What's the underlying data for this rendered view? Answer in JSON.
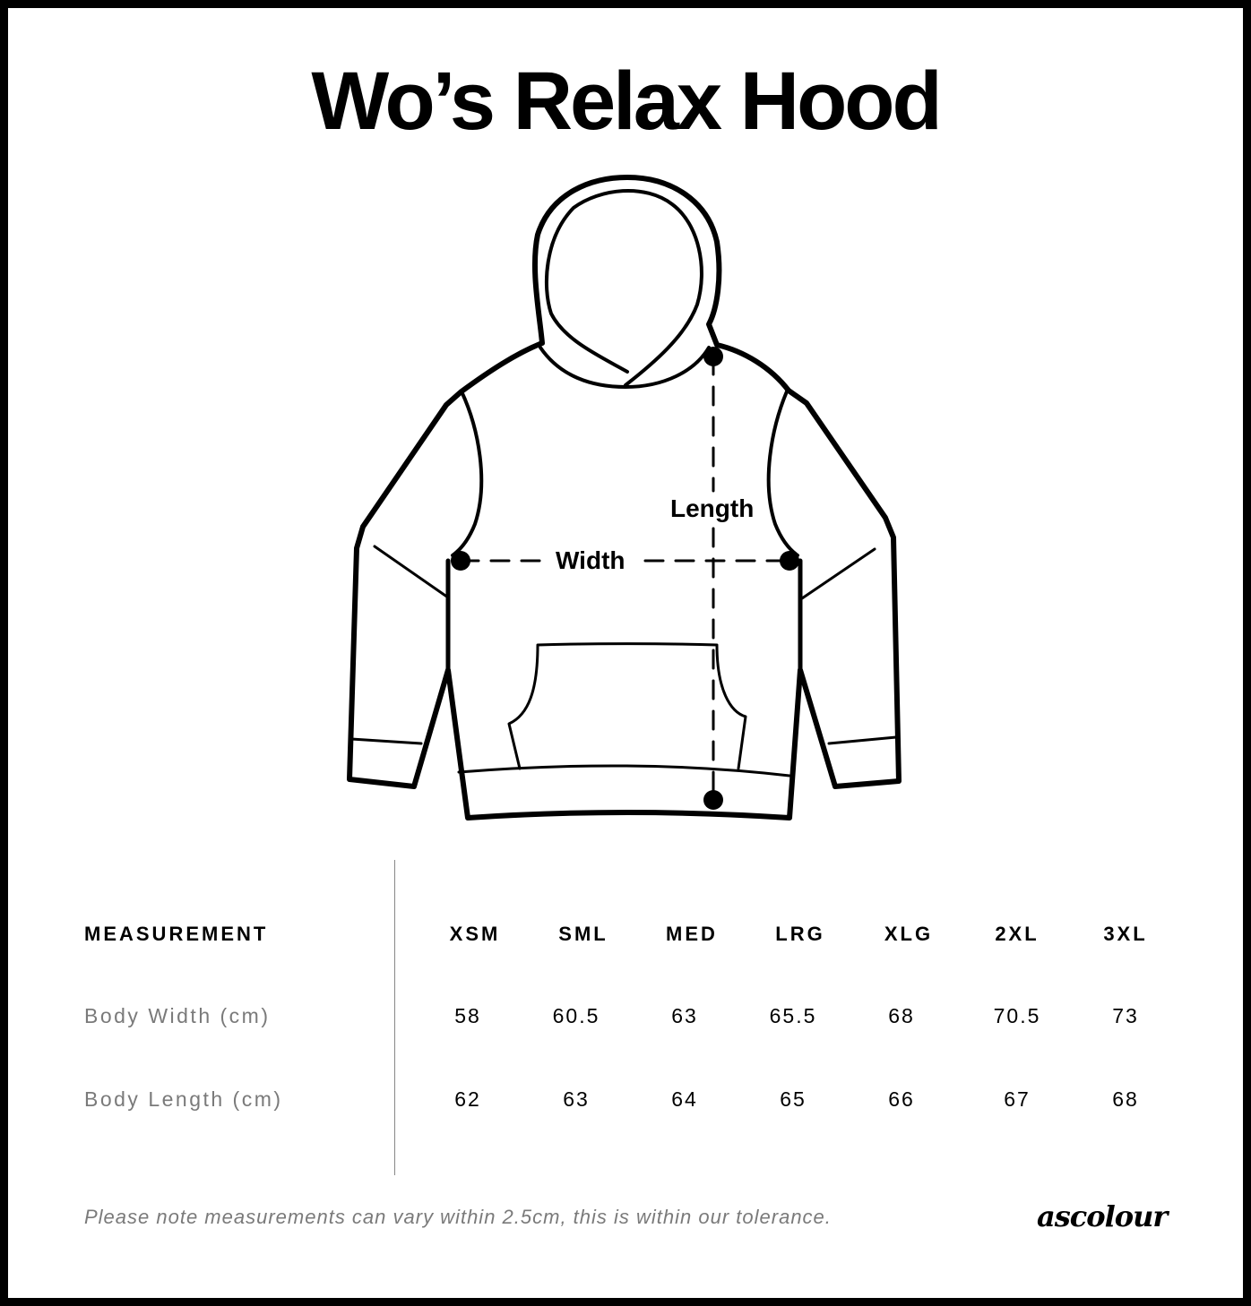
{
  "title": "Wo’s Relax Hood",
  "diagram": {
    "width_label": "Width",
    "length_label": "Length"
  },
  "table": {
    "header": "MEASUREMENT",
    "sizes": [
      "XSM",
      "SML",
      "MED",
      "LRG",
      "XLG",
      "2XL",
      "3XL"
    ],
    "rows": [
      {
        "label": "Body Width (cm)",
        "values": [
          "58",
          "60.5",
          "63",
          "65.5",
          "68",
          "70.5",
          "73"
        ]
      },
      {
        "label": "Body Length (cm)",
        "values": [
          "62",
          "63",
          "64",
          "65",
          "66",
          "67",
          "68"
        ]
      }
    ]
  },
  "note": "Please note measurements can vary within 2.5cm, this is within our tolerance.",
  "brand": "ascolour"
}
